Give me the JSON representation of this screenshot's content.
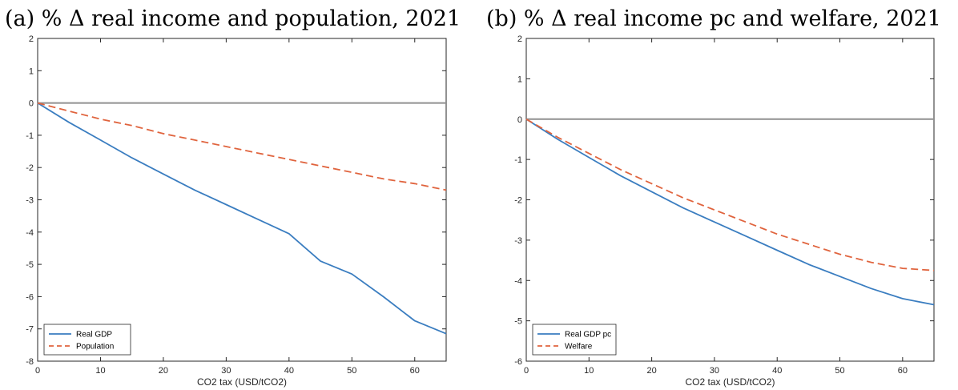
{
  "chart_data": [
    {
      "type": "line",
      "title": "(a) % Δ real income and population, 2021",
      "xlabel": "CO2 tax (USD/tCO2)",
      "ylabel": "",
      "xlim": [
        0,
        65
      ],
      "ylim": [
        -8,
        2
      ],
      "xticks": [
        0,
        10,
        20,
        30,
        40,
        50,
        60
      ],
      "yticks": [
        2,
        1,
        0,
        -1,
        -2,
        -3,
        -4,
        -5,
        -6,
        -7,
        -8
      ],
      "reference_line_y": 0,
      "legend_position": "bottom-left",
      "colors": {
        "solid": "#3a7dc0",
        "dashed": "#e0643e",
        "reference": "#909090"
      },
      "series": [
        {
          "name": "Real GDP",
          "style": "solid",
          "x": [
            0,
            5,
            10,
            15,
            20,
            25,
            30,
            35,
            40,
            45,
            50,
            55,
            60,
            65
          ],
          "y": [
            0,
            -0.6,
            -1.15,
            -1.7,
            -2.2,
            -2.7,
            -3.15,
            -3.6,
            -4.05,
            -4.9,
            -5.3,
            -6.0,
            -6.75,
            -7.15
          ]
        },
        {
          "name": "Population",
          "style": "dashed",
          "x": [
            0,
            5,
            10,
            15,
            20,
            25,
            30,
            35,
            40,
            45,
            50,
            55,
            60,
            65
          ],
          "y": [
            0,
            -0.25,
            -0.5,
            -0.7,
            -0.95,
            -1.15,
            -1.35,
            -1.55,
            -1.75,
            -1.95,
            -2.15,
            -2.35,
            -2.5,
            -2.7
          ]
        }
      ]
    },
    {
      "type": "line",
      "title": "(b) % Δ real income pc and welfare, 2021",
      "xlabel": "CO2 tax (USD/tCO2)",
      "ylabel": "",
      "xlim": [
        0,
        65
      ],
      "ylim": [
        -6,
        2
      ],
      "xticks": [
        0,
        10,
        20,
        30,
        40,
        50,
        60
      ],
      "yticks": [
        2,
        1,
        0,
        -1,
        -2,
        -3,
        -4,
        -5,
        -6
      ],
      "reference_line_y": 0,
      "legend_position": "bottom-left",
      "colors": {
        "solid": "#3a7dc0",
        "dashed": "#e0643e",
        "reference": "#909090"
      },
      "series": [
        {
          "name": "Real GDP pc",
          "style": "solid",
          "x": [
            0,
            5,
            10,
            15,
            20,
            25,
            30,
            35,
            40,
            45,
            50,
            55,
            60,
            65
          ],
          "y": [
            0,
            -0.5,
            -0.95,
            -1.4,
            -1.8,
            -2.2,
            -2.55,
            -2.9,
            -3.25,
            -3.6,
            -3.9,
            -4.2,
            -4.45,
            -4.6
          ]
        },
        {
          "name": "Welfare",
          "style": "dashed",
          "x": [
            0,
            5,
            10,
            15,
            20,
            25,
            30,
            35,
            40,
            45,
            50,
            55,
            60,
            65
          ],
          "y": [
            0,
            -0.45,
            -0.85,
            -1.25,
            -1.6,
            -1.95,
            -2.25,
            -2.55,
            -2.85,
            -3.1,
            -3.35,
            -3.55,
            -3.7,
            -3.75
          ]
        }
      ]
    }
  ]
}
